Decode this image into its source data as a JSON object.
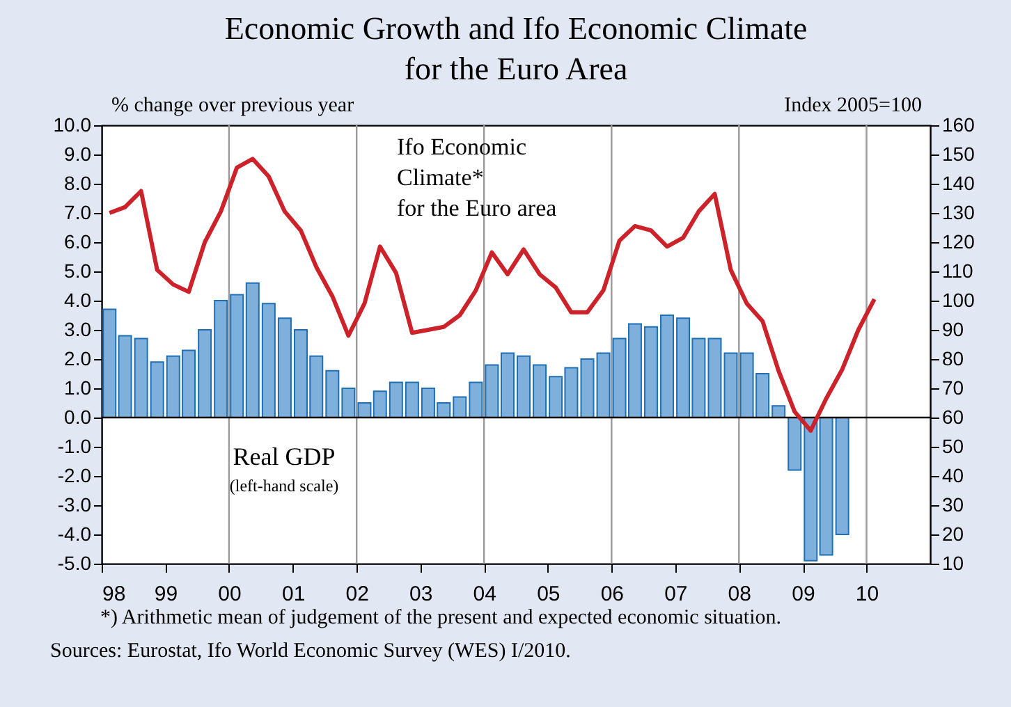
{
  "chart_data": {
    "type": "bar",
    "title": "Economic Growth and Ifo Economic Climate\nfor the Euro Area",
    "ylabel": "%  change over previous year",
    "y2label": "Index 2005=100",
    "xlim": [
      "1998-01-01",
      "2011-01-01"
    ],
    "xticks": [
      {
        "value": "1998-01-01",
        "label": "98"
      },
      {
        "value": "1999-01-01",
        "label": "99"
      },
      {
        "value": "2000-01-01",
        "label": "00"
      },
      {
        "value": "2001-01-01",
        "label": "01"
      },
      {
        "value": "2002-01-01",
        "label": "02"
      },
      {
        "value": "2003-01-01",
        "label": "03"
      },
      {
        "value": "2004-01-01",
        "label": "04"
      },
      {
        "value": "2005-01-01",
        "label": "05"
      },
      {
        "value": "2006-01-01",
        "label": "06"
      },
      {
        "value": "2007-01-01",
        "label": "07"
      },
      {
        "value": "2008-01-01",
        "label": "08"
      },
      {
        "value": "2009-01-01",
        "label": "09"
      },
      {
        "value": "2010-01-01",
        "label": "10"
      }
    ],
    "ylim": [
      -5,
      10
    ],
    "yticks": [
      {
        "value": -5,
        "label": "-5.0"
      },
      {
        "value": -4,
        "label": "-4.0"
      },
      {
        "value": -3,
        "label": "-3.0"
      },
      {
        "value": -2,
        "label": "-2.0"
      },
      {
        "value": -1,
        "label": "-1.0"
      },
      {
        "value": 0,
        "label": "0.0"
      },
      {
        "value": 1,
        "label": "1.0"
      },
      {
        "value": 2,
        "label": "2.0"
      },
      {
        "value": 3,
        "label": "3.0"
      },
      {
        "value": 4,
        "label": "4.0"
      },
      {
        "value": 5,
        "label": "5.0"
      },
      {
        "value": 6,
        "label": "6.0"
      },
      {
        "value": 7,
        "label": "7.0"
      },
      {
        "value": 8,
        "label": "8.0"
      },
      {
        "value": 9,
        "label": "9.0"
      },
      {
        "value": 10,
        "label": "10.0"
      }
    ],
    "y2lim": [
      10,
      160
    ],
    "y2ticks": [
      10,
      20,
      30,
      40,
      50,
      60,
      70,
      80,
      90,
      100,
      110,
      120,
      130,
      140,
      150,
      160
    ],
    "series": [
      {
        "name": "Real GDP",
        "color": "#7fb0dc",
        "x": [
          "1998-02-15",
          "1998-05-15",
          "1998-08-15",
          "1998-11-15",
          "1999-02-15",
          "1999-05-15",
          "1999-08-15",
          "1999-11-15",
          "2000-02-15",
          "2000-05-15",
          "2000-08-15",
          "2000-11-15",
          "2001-02-15",
          "2001-05-15",
          "2001-08-15",
          "2001-11-15",
          "2002-02-15",
          "2002-05-15",
          "2002-08-15",
          "2002-11-15",
          "2003-02-15",
          "2003-05-15",
          "2003-08-15",
          "2003-11-15",
          "2004-02-15",
          "2004-05-15",
          "2004-08-15",
          "2004-11-15",
          "2005-02-15",
          "2005-05-15",
          "2005-08-15",
          "2005-11-15",
          "2006-02-15",
          "2006-05-15",
          "2006-08-15",
          "2006-11-15",
          "2007-02-15",
          "2007-05-15",
          "2007-08-15",
          "2007-11-15",
          "2008-02-15",
          "2008-05-15",
          "2008-08-15",
          "2008-11-15",
          "2009-02-15",
          "2009-05-15",
          "2009-08-15"
        ],
        "values": [
          3.7,
          2.8,
          2.7,
          1.9,
          2.1,
          2.3,
          3.0,
          4.0,
          4.2,
          4.6,
          3.9,
          3.4,
          3.0,
          2.1,
          1.6,
          1.0,
          0.5,
          0.9,
          1.2,
          1.2,
          1.0,
          0.5,
          0.7,
          1.2,
          1.8,
          2.2,
          2.1,
          1.8,
          1.4,
          1.7,
          2.0,
          2.2,
          2.7,
          3.2,
          3.1,
          3.5,
          3.4,
          2.7,
          2.7,
          2.2,
          2.2,
          1.5,
          0.4,
          -1.8,
          -4.9,
          -4.7,
          -4.0
        ]
      },
      {
        "name": "Ifo Economic\nClimate*\nfor the Euro area",
        "type": "line",
        "axis": "y2",
        "color": "#cc2229",
        "x": [
          "1998-02-15",
          "1998-05-15",
          "1998-08-15",
          "1998-11-15",
          "1999-02-15",
          "1999-05-15",
          "1999-08-15",
          "1999-11-15",
          "2000-02-15",
          "2000-05-15",
          "2000-08-15",
          "2000-11-15",
          "2001-02-15",
          "2001-05-15",
          "2001-08-15",
          "2001-11-15",
          "2002-02-15",
          "2002-05-15",
          "2002-08-15",
          "2002-11-15",
          "2003-02-15",
          "2003-05-15",
          "2003-08-15",
          "2003-11-15",
          "2004-02-15",
          "2004-05-15",
          "2004-08-15",
          "2004-11-15",
          "2005-02-15",
          "2005-05-15",
          "2005-08-15",
          "2005-11-15",
          "2006-02-15",
          "2006-05-15",
          "2006-08-15",
          "2006-11-15",
          "2007-02-15",
          "2007-05-15",
          "2007-08-15",
          "2007-11-15",
          "2008-02-15",
          "2008-05-15",
          "2008-08-15",
          "2008-11-15",
          "2009-02-15",
          "2009-05-15",
          "2009-08-15",
          "2009-11-15",
          "2010-02-15"
        ],
        "values": [
          130,
          132,
          137.5,
          110.5,
          105.5,
          103,
          120,
          130.5,
          145.5,
          148.5,
          142.5,
          130.5,
          124,
          111.5,
          101.5,
          88,
          99,
          118.5,
          109.5,
          89,
          90,
          91,
          95,
          103.5,
          116.5,
          109,
          117.5,
          109,
          104.5,
          96,
          96,
          103.5,
          120.5,
          125.5,
          124,
          118.5,
          121.5,
          130.5,
          136.5,
          110.5,
          99,
          93,
          76,
          62,
          55.5,
          66.5,
          76.5,
          90,
          100.5
        ]
      }
    ],
    "annotations": [
      "(left-hand scale)",
      "*) Arithmetic mean of judgement of the present and expected economic situation.",
      "Sources: Eurostat, Ifo World Economic Survey (WES) I/2010."
    ],
    "ref_lines": [
      {
        "axis": "x",
        "value": "2000-01-01",
        "color": "#9a9a9a"
      },
      {
        "axis": "x",
        "value": "2002-01-01",
        "color": "#9a9a9a"
      },
      {
        "axis": "x",
        "value": "2004-01-01",
        "color": "#9a9a9a"
      },
      {
        "axis": "x",
        "value": "2006-01-01",
        "color": "#9a9a9a"
      },
      {
        "axis": "x",
        "value": "2008-01-01",
        "color": "#9a9a9a"
      },
      {
        "axis": "x",
        "value": "2010-01-01",
        "color": "#9a9a9a"
      },
      {
        "axis": "y",
        "value": 0,
        "color": "#000000"
      }
    ],
    "grid": false
  }
}
